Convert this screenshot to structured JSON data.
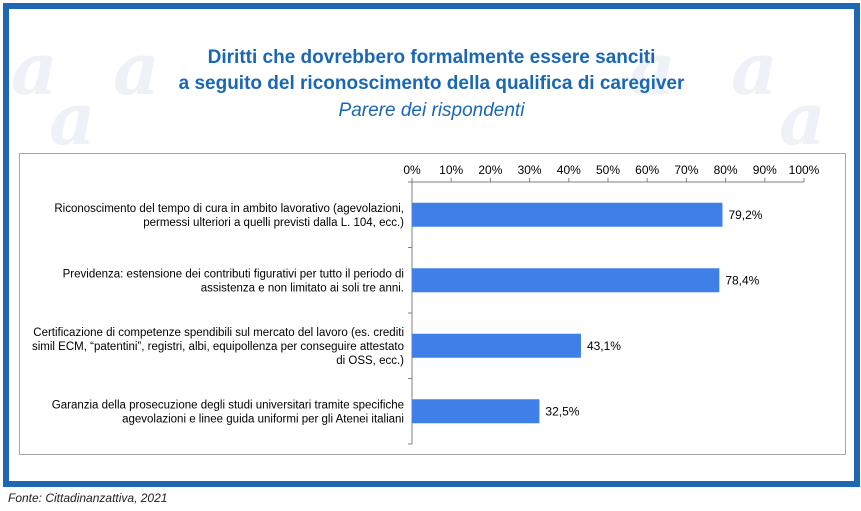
{
  "chart_data": {
    "type": "bar",
    "orientation": "horizontal",
    "title_lines": [
      "Diritti che dovrebbero formalmente essere sanciti",
      "a seguito del riconoscimento della qualifica di caregiver"
    ],
    "subtitle": "Parere dei rispondenti",
    "categories": [
      "Riconoscimento del tempo di cura in ambito lavorativo (agevolazioni, permessi ulteriori a quelli previsti dalla L. 104, ecc.)",
      "Previdenza: estensione dei contributi figurativi per tutto il periodo di assistenza e non limitato ai soli tre anni.",
      "Certificazione di competenze spendibili sul mercato del lavoro (es. crediti simil ECM, \"patentini\", registri, albi, equipollenza per conseguire attestato di OSS, ecc.)",
      "Garanzia della prosecuzione degli studi universitari tramite specifiche agevolazioni e linee guida uniformi per gli Atenei italiani"
    ],
    "category_lines": [
      [
        "Riconoscimento del tempo di cura in ambito lavorativo (agevolazioni,",
        "permessi ulteriori a quelli previsti dalla L. 104, ecc.)"
      ],
      [
        "Previdenza: estensione dei contributi figurativi per tutto il periodo di",
        "assistenza e non limitato ai soli tre anni."
      ],
      [
        "Certificazione di competenze spendibili sul mercato del lavoro (es. crediti",
        "simil ECM, “patentini”, registri, albi, equipollenza per conseguire attestato",
        "di OSS, ecc.)"
      ],
      [
        "Garanzia della prosecuzione degli studi universitari tramite specifiche",
        "agevolazioni e linee guida uniformi per gli Atenei italiani"
      ]
    ],
    "values": [
      79.2,
      78.4,
      43.1,
      32.5
    ],
    "value_labels": [
      "79,2%",
      "78,4%",
      "43,1%",
      "32,5%"
    ],
    "x_ticks": [
      "0%",
      "10%",
      "20%",
      "30%",
      "40%",
      "50%",
      "60%",
      "70%",
      "80%",
      "90%",
      "100%"
    ],
    "xlim": [
      0,
      100
    ],
    "axis_position": "top",
    "grid": false,
    "bar_color": "#3f7fe8"
  },
  "frame": {
    "border_color": "#1d67b3",
    "title_color": "#1a67b5"
  },
  "source": "Fonte: Cittadinanzattiva,  2021"
}
